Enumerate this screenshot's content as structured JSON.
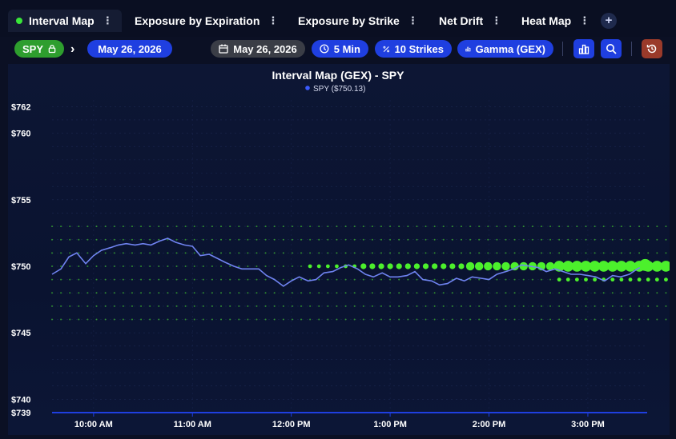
{
  "tabs": [
    {
      "label": "Interval Map",
      "active": true
    },
    {
      "label": "Exposure by Expiration",
      "active": false
    },
    {
      "label": "Exposure by Strike",
      "active": false
    },
    {
      "label": "Net Drift",
      "active": false
    },
    {
      "label": "Heat Map",
      "active": false
    }
  ],
  "tab_menu_glyph": "⋮",
  "add_tab_glyph": "+",
  "toolbar": {
    "ticker": "SPY",
    "ticker_icon": "lock-icon",
    "date_selected": "May 26, 2026",
    "date_filter": "May 26, 2026",
    "interval": "5 Min",
    "strikes": "10 Strikes",
    "metric": "Gamma (GEX)",
    "chart_button_icon": "bar-chart-icon",
    "search_button_icon": "search-icon",
    "reset_button_icon": "history-icon"
  },
  "colors": {
    "ticker_green": "#2e9e2e",
    "accent_blue": "#1f3fe0",
    "date_gray": "#3a3d46",
    "price_line": "#6f83f0",
    "positive_dot": "#4cf02c",
    "negative_dot": "#d02a2a",
    "reset_red": "#9a3a2a"
  },
  "chart_data": {
    "type": "scatter",
    "title": "Interval Map (GEX) - SPY",
    "legend": "SPY ($750.13)",
    "legend_placement": "top-center",
    "grid": true,
    "ylim": [
      739,
      762.5
    ],
    "y_ticks": [
      "$762",
      "$760",
      "$755",
      "$750",
      "$745",
      "$740",
      "$739"
    ],
    "y_tick_values": [
      762,
      760,
      755,
      750,
      745,
      740,
      739
    ],
    "x_ticks": [
      "10:00 AM",
      "11:00 AM",
      "12:00 PM",
      "1:00 PM",
      "2:00 PM",
      "3:00 PM"
    ],
    "x_tick_values": [
      10,
      11,
      12,
      13,
      14,
      15
    ],
    "xlim": [
      9.58,
      15.6
    ],
    "price_series": {
      "name": "SPY",
      "x": [
        9.58,
        9.67,
        9.75,
        9.83,
        9.92,
        10.0,
        10.08,
        10.17,
        10.25,
        10.33,
        10.42,
        10.5,
        10.58,
        10.67,
        10.75,
        10.83,
        10.92,
        11.0,
        11.08,
        11.17,
        11.25,
        11.33,
        11.42,
        11.5,
        11.58,
        11.67,
        11.75,
        11.83,
        11.92,
        12.0,
        12.08,
        12.17,
        12.25,
        12.33,
        12.42,
        12.5,
        12.58,
        12.67,
        12.75,
        12.83,
        12.92,
        13.0,
        13.08,
        13.17,
        13.25,
        13.33,
        13.42,
        13.5,
        13.58,
        13.67,
        13.75,
        13.83,
        13.92,
        14.0,
        14.08,
        14.17,
        14.25,
        14.33,
        14.42,
        14.5,
        14.58,
        14.67,
        14.75,
        14.83,
        14.92,
        15.0,
        15.08,
        15.17,
        15.25,
        15.33,
        15.42,
        15.5,
        15.58
      ],
      "y": [
        749.4,
        749.8,
        750.7,
        751.0,
        750.2,
        750.8,
        751.2,
        751.4,
        751.6,
        751.7,
        751.6,
        751.7,
        751.6,
        751.9,
        752.1,
        751.8,
        751.6,
        751.5,
        750.8,
        750.9,
        750.6,
        750.3,
        750.0,
        749.8,
        749.8,
        749.8,
        749.3,
        749.0,
        748.5,
        748.9,
        749.2,
        748.9,
        749.0,
        749.5,
        749.6,
        749.9,
        750.1,
        749.8,
        749.4,
        749.2,
        749.5,
        749.2,
        749.2,
        749.3,
        749.6,
        749.0,
        748.9,
        748.6,
        748.7,
        749.1,
        748.9,
        749.2,
        749.1,
        749.0,
        749.4,
        749.6,
        749.8,
        750.1,
        750.0,
        749.9,
        749.6,
        749.8,
        749.6,
        749.4,
        749.4,
        749.3,
        749.2,
        748.9,
        749.3,
        749.2,
        749.4,
        749.8,
        750.1
      ]
    },
    "gex_strikes": [
      {
        "strike": 753,
        "sign": "pos",
        "start": 9.58,
        "sizes": [
          1,
          1,
          1,
          1,
          1,
          1,
          1,
          1,
          1,
          1,
          1,
          1,
          1,
          1,
          1,
          1,
          1,
          1,
          1,
          1,
          1,
          1,
          1,
          1,
          1,
          1,
          1,
          1,
          1,
          1,
          1,
          1,
          1,
          1,
          1,
          1,
          1,
          1,
          1,
          1,
          1,
          1,
          1,
          1,
          1,
          1,
          1,
          1,
          1,
          1,
          1,
          1,
          1,
          1,
          1,
          1,
          1,
          1,
          1,
          1,
          1,
          1,
          1,
          1,
          1,
          1,
          1,
          1,
          1,
          1,
          1,
          1,
          1
        ]
      },
      {
        "strike": 752,
        "sign": "pos",
        "start": 9.58,
        "sizes": [
          1,
          1,
          1,
          1,
          1,
          1,
          1,
          1,
          1,
          1,
          1,
          1,
          1,
          1,
          1,
          1,
          1,
          1,
          1,
          1,
          1,
          1,
          1,
          1,
          1,
          1,
          1,
          1,
          1,
          1,
          1,
          1,
          1,
          1,
          1,
          1,
          1,
          1,
          1,
          1,
          1,
          1,
          1,
          1,
          1,
          1,
          1,
          1,
          1,
          1,
          1,
          1,
          1,
          1,
          1,
          1,
          1,
          1,
          1,
          1,
          1,
          1,
          1,
          1,
          1,
          1,
          1,
          1,
          1,
          1,
          1,
          1,
          1
        ]
      },
      {
        "strike": 751,
        "sign": "pos",
        "start": 9.58,
        "sizes": [
          1,
          1,
          1,
          1,
          1,
          1,
          1,
          1,
          1,
          1,
          1,
          1,
          1,
          1,
          1,
          1,
          1,
          1,
          1,
          1,
          1,
          1,
          1,
          1,
          1,
          1,
          1,
          1,
          1,
          1,
          1,
          1,
          1,
          1,
          1,
          1,
          1,
          1,
          1,
          1,
          1,
          1,
          1,
          1,
          1,
          1,
          1,
          1,
          1,
          1,
          1,
          1,
          1,
          1,
          1,
          1,
          1,
          1,
          1,
          1,
          1,
          1,
          1,
          1,
          1,
          1,
          1,
          1,
          1,
          1,
          1,
          1,
          1
        ]
      },
      {
        "strike": 750,
        "sign": "pos",
        "start": 9.58,
        "sizes": [
          1,
          1,
          1,
          1,
          1,
          1,
          1,
          1,
          1,
          1,
          1,
          1,
          1,
          1,
          1,
          1,
          1,
          1,
          1,
          1,
          1,
          1,
          1,
          1,
          1,
          1,
          1,
          1,
          1,
          2,
          2,
          2,
          2,
          2,
          2,
          3,
          3,
          3,
          3,
          3,
          3,
          3,
          3,
          3,
          3,
          3,
          3,
          4,
          4,
          4,
          4,
          4,
          4,
          4,
          4,
          4,
          4,
          5,
          5,
          5,
          5,
          5,
          5,
          5,
          5,
          5,
          5,
          5,
          5,
          5,
          5,
          5,
          5
        ]
      },
      {
        "strike": 749,
        "sign": "pos",
        "start": 9.58,
        "sizes": [
          1,
          1,
          1,
          1,
          1,
          1,
          1,
          1,
          1,
          1,
          1,
          1,
          1,
          1,
          1,
          1,
          1,
          1,
          1,
          1,
          1,
          1,
          1,
          1,
          1,
          1,
          1,
          1,
          1,
          1,
          1,
          1,
          1,
          1,
          1,
          1,
          1,
          1,
          1,
          1,
          1,
          1,
          1,
          1,
          1,
          1,
          1,
          1,
          1,
          1,
          1,
          1,
          1,
          1,
          1,
          1,
          1,
          2,
          2,
          2,
          2,
          2,
          2,
          2,
          2,
          2,
          2,
          2,
          2,
          2,
          2,
          2,
          2
        ]
      },
      {
        "strike": 748,
        "sign": "pos",
        "start": 9.58,
        "sizes": [
          1,
          1,
          1,
          1,
          1,
          1,
          1,
          1,
          1,
          1,
          1,
          1,
          1,
          1,
          1,
          1,
          1,
          1,
          1,
          1,
          1,
          1,
          1,
          1,
          1,
          1,
          1,
          1,
          1,
          1,
          1,
          1,
          1,
          1,
          1,
          1,
          1,
          1,
          1,
          1,
          1,
          1,
          1,
          1,
          1,
          1,
          1,
          1,
          1,
          1,
          1,
          1,
          1,
          1,
          1,
          1,
          1,
          1,
          1,
          1,
          1,
          1,
          1,
          1,
          1,
          1,
          1,
          1,
          1,
          1,
          1,
          1,
          1
        ]
      },
      {
        "strike": 747,
        "sign": "pos",
        "start": 9.58,
        "sizes": [
          1,
          1,
          1,
          1,
          1,
          1,
          1,
          1,
          1,
          1,
          1,
          1,
          1,
          1,
          1,
          1,
          1,
          1,
          1,
          1,
          1,
          1,
          1,
          1,
          1,
          1,
          1,
          1,
          1,
          1,
          1,
          1,
          1,
          1,
          1,
          1,
          1,
          1,
          1,
          1,
          1,
          1,
          1,
          1,
          1,
          1,
          1,
          1,
          1,
          1,
          1,
          1,
          1,
          1,
          1,
          1,
          1,
          1,
          1,
          1,
          1,
          1,
          1,
          1,
          1,
          1,
          1,
          1,
          1,
          1,
          1,
          1,
          1
        ]
      },
      {
        "strike": 746,
        "sign": "pos",
        "start": 9.58,
        "sizes": [
          1,
          1,
          1,
          1,
          1,
          1,
          1,
          1,
          1,
          1,
          1,
          1,
          1,
          1,
          1,
          1,
          1,
          1,
          1,
          1,
          1,
          1,
          1,
          1,
          1,
          1,
          1,
          1,
          1,
          1,
          1,
          1,
          1,
          1,
          1,
          1,
          1,
          1,
          1,
          1,
          1,
          1,
          1,
          1,
          1,
          1,
          1,
          1,
          1,
          1,
          1,
          1,
          1,
          1,
          1,
          1,
          1,
          1,
          1,
          1,
          1,
          1,
          1,
          1,
          1,
          1,
          1,
          1,
          1,
          1,
          1,
          1,
          1
        ]
      }
    ]
  }
}
